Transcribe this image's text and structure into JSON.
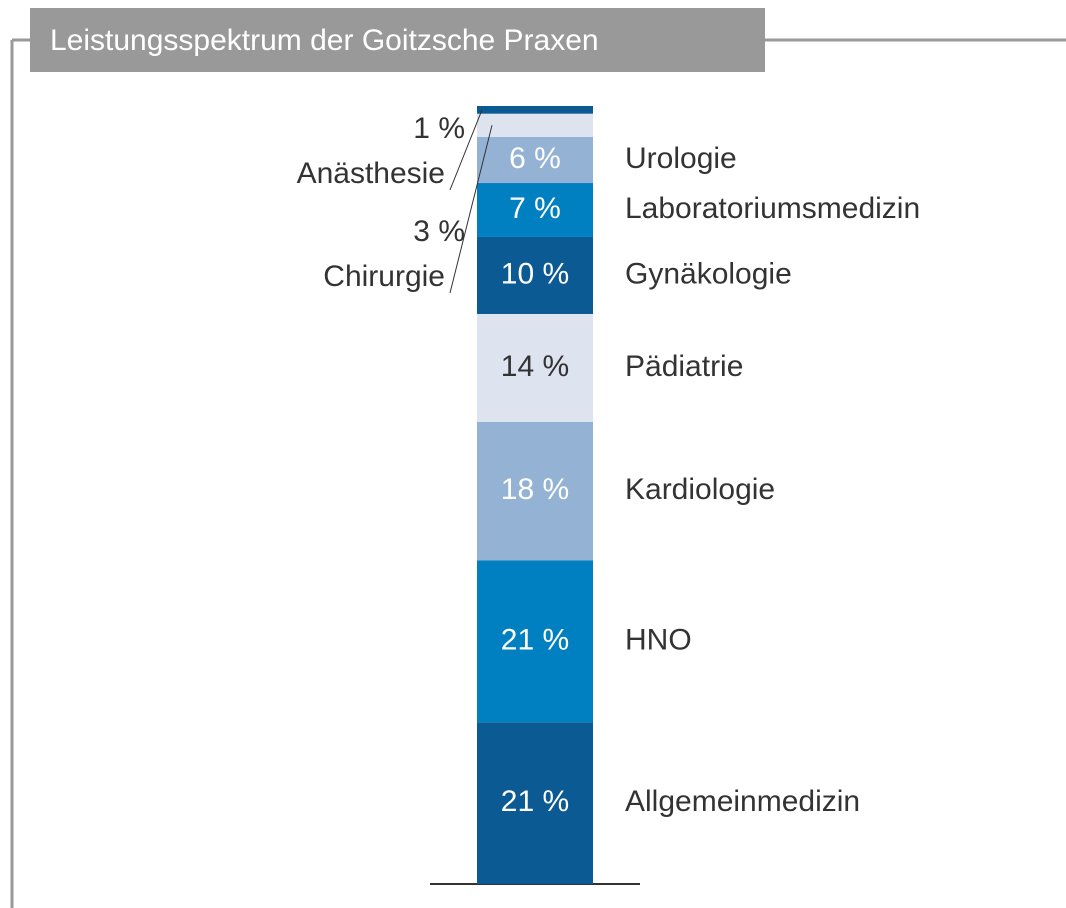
{
  "chart_data": {
    "type": "stacked_bar",
    "title": "Leistungsspektrum der Goitzsche Praxen",
    "series": [
      {
        "name": "Allgemeinmedizin",
        "color": "#0b5a94",
        "values": [
          21
        ],
        "value_labels": [
          "21 %"
        ]
      },
      {
        "name": "HNO",
        "color": "#0080c0",
        "values": [
          21
        ],
        "value_labels": [
          "21 %"
        ]
      },
      {
        "name": "Kardiologie",
        "color": "#94b2d3",
        "values": [
          18
        ],
        "value_labels": [
          "18 %"
        ]
      },
      {
        "name": "Pädiatrie",
        "color": "#dde4ef",
        "values": [
          14
        ],
        "value_labels": [
          "14 %"
        ]
      },
      {
        "name": "Gynäkologie",
        "color": "#0b5a94",
        "values": [
          10
        ],
        "value_labels": [
          "10 %"
        ]
      },
      {
        "name": "Laboratoriumsmedizin",
        "color": "#0080c0",
        "values": [
          7
        ],
        "value_labels": [
          "7 %"
        ]
      },
      {
        "name": "Urologie",
        "color": "#94b2d3",
        "values": [
          6
        ],
        "value_labels": [
          "6 %"
        ]
      },
      {
        "name": "Chirurgie",
        "color": "#dde4ef",
        "values": [
          3
        ],
        "value_labels": [
          "3 %"
        ]
      },
      {
        "name": "Anästhesie",
        "color": "#0b5a94",
        "values": [
          1
        ],
        "value_labels": [
          "1 %"
        ]
      }
    ]
  }
}
